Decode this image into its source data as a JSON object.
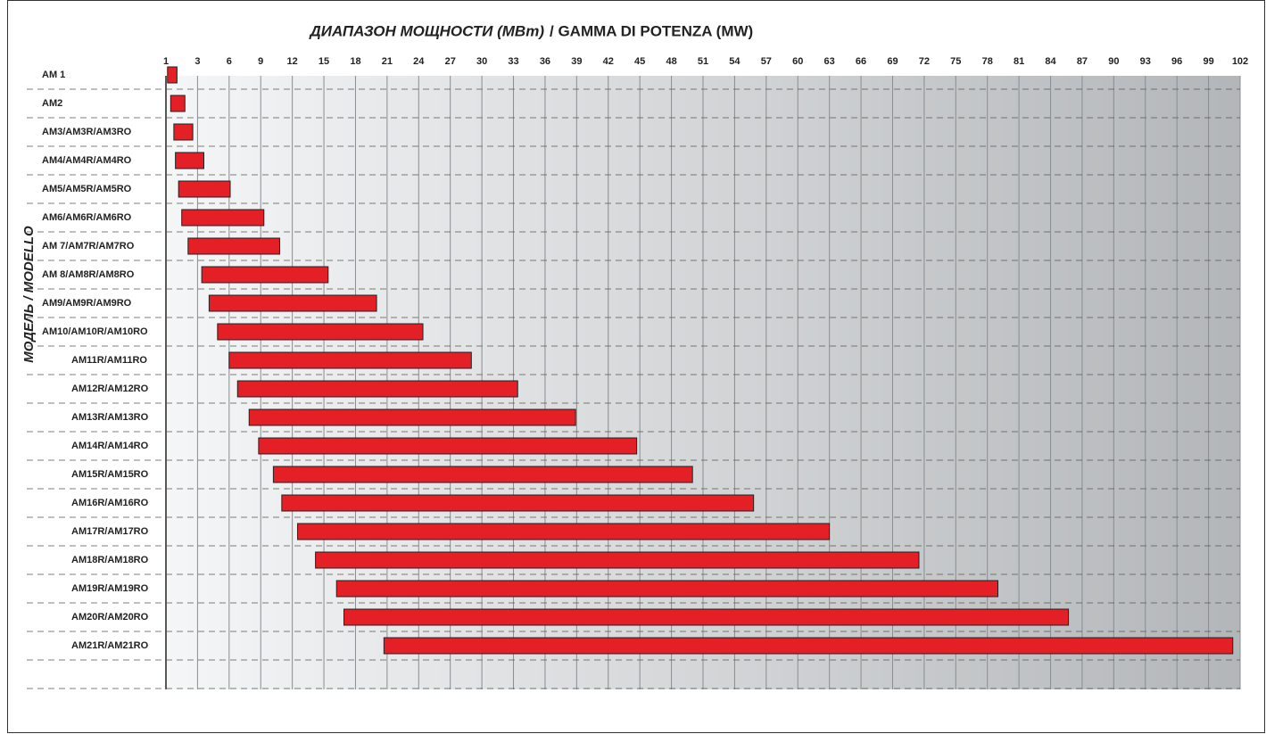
{
  "chart_data": {
    "type": "range-bar",
    "title": "ДИАПАЗОН МОЩНОСТИ (МВт)",
    "title_2": "/ GAMMA DI POTENZA (MW)",
    "ylabel": "МОДЕЛЬ / MODELLO",
    "categories": [
      "AM 1",
      "AM2",
      "AM3/AM3R/AM3RO",
      "AM4/AM4R/AM4RO",
      "AM5/AM5R/AM5RO",
      "AM6/AM6R/AM6RO",
      "AM 7/AM7R/AM7RO",
      "AM 8/AM8R/AM8RO",
      "AM9/AM9R/AM9RO",
      "AM10/AM10R/AM10RO",
      "AM11R/AM11RO",
      "AM12R/AM12RO",
      "AM13R/AM13RO",
      "AM14R/AM14RO",
      "AM15R/AM15RO",
      "AM16R/AM16RO",
      "AM17R/AM17RO",
      "AM18R/AM18RO",
      "AM19R/AM19RO",
      "AM20R/AM20RO",
      "AM21R/AM21RO"
    ],
    "starts": [
      1.1,
      1.3,
      1.5,
      1.6,
      1.8,
      2.0,
      2.4,
      3.4,
      4.1,
      4.9,
      6,
      6.8,
      7.9,
      8.8,
      10.2,
      11,
      12.5,
      14.2,
      16.2,
      16.9,
      20.7
    ],
    "ends": [
      1.7,
      2.2,
      2.7,
      3.6,
      6.1,
      9.3,
      10.8,
      15.4,
      20,
      24.4,
      29,
      33.4,
      38.9,
      44.7,
      50,
      55.8,
      63,
      71.5,
      79,
      85.7,
      101.3
    ],
    "color": "#e41f26",
    "xlim": [
      1,
      102
    ],
    "xticks": [
      1,
      3,
      6,
      9,
      12,
      15,
      18,
      21,
      24,
      27,
      30,
      33,
      36,
      39,
      42,
      45,
      48,
      51,
      54,
      57,
      60,
      63,
      66,
      69,
      72,
      75,
      78,
      81,
      84,
      87,
      90,
      93,
      96,
      99,
      102
    ],
    "grid": true
  }
}
